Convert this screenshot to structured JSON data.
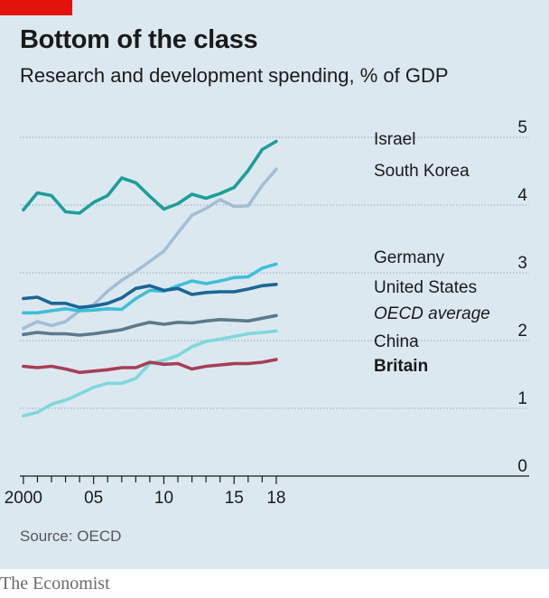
{
  "header": {
    "title": "Bottom of the class",
    "subtitle": "Research and development spending, % of GDP"
  },
  "footer": {
    "source": "Source: OECD",
    "brand": "The Economist"
  },
  "colors": {
    "background": "#dce8f0",
    "accent_tag": "#e3120b"
  },
  "chart_data": {
    "type": "line",
    "title": "Bottom of the class",
    "subtitle": "Research and development spending, % of GDP",
    "xlabel": "",
    "ylabel": "",
    "x": [
      2000,
      2001,
      2002,
      2003,
      2004,
      2005,
      2006,
      2007,
      2008,
      2009,
      2010,
      2011,
      2012,
      2013,
      2014,
      2015,
      2016,
      2017,
      2018
    ],
    "xlim": [
      1999.75,
      2036
    ],
    "ylim": [
      0,
      5
    ],
    "x_ticks": [
      2000,
      2005,
      2010,
      2015,
      2018
    ],
    "x_tick_labels": [
      "2000",
      "05",
      "10",
      "15",
      "18"
    ],
    "y_ticks": [
      0,
      1,
      2,
      3,
      4,
      5
    ],
    "y_tick_labels": [
      "0",
      "1",
      "2",
      "3",
      "4",
      "5"
    ],
    "y_axis_side": "right",
    "grid": true,
    "legend": "direct labels at line ends",
    "series": [
      {
        "name": "Israel",
        "color": "#1c9e9a",
        "style": "normal",
        "values": [
          3.93,
          4.18,
          4.14,
          3.9,
          3.88,
          4.04,
          4.14,
          4.4,
          4.33,
          4.13,
          3.94,
          4.02,
          4.16,
          4.1,
          4.17,
          4.26,
          4.51,
          4.82,
          4.94
        ]
      },
      {
        "name": "South Korea",
        "color": "#a3bfd4",
        "style": "normal",
        "values": [
          2.18,
          2.28,
          2.22,
          2.28,
          2.44,
          2.53,
          2.73,
          2.89,
          3.02,
          3.17,
          3.32,
          3.59,
          3.85,
          3.95,
          4.08,
          3.98,
          3.99,
          4.29,
          4.53
        ]
      },
      {
        "name": "Germany",
        "color": "#3ebfd6",
        "style": "normal",
        "values": [
          2.41,
          2.41,
          2.44,
          2.47,
          2.44,
          2.45,
          2.47,
          2.46,
          2.62,
          2.74,
          2.73,
          2.81,
          2.88,
          2.84,
          2.88,
          2.93,
          2.94,
          3.07,
          3.13
        ]
      },
      {
        "name": "United States",
        "color": "#1a6696",
        "style": "normal",
        "values": [
          2.62,
          2.64,
          2.55,
          2.55,
          2.49,
          2.51,
          2.55,
          2.63,
          2.77,
          2.81,
          2.74,
          2.77,
          2.68,
          2.71,
          2.72,
          2.72,
          2.76,
          2.81,
          2.83
        ]
      },
      {
        "name": "OECD average",
        "color": "#5c7a8c",
        "style": "italic",
        "values": [
          2.09,
          2.12,
          2.1,
          2.1,
          2.08,
          2.1,
          2.13,
          2.16,
          2.22,
          2.27,
          2.24,
          2.27,
          2.26,
          2.29,
          2.31,
          2.3,
          2.29,
          2.33,
          2.37
        ]
      },
      {
        "name": "China",
        "color": "#7ed8dc",
        "style": "normal",
        "values": [
          0.89,
          0.94,
          1.06,
          1.12,
          1.21,
          1.31,
          1.37,
          1.37,
          1.44,
          1.66,
          1.71,
          1.78,
          1.91,
          1.99,
          2.02,
          2.06,
          2.1,
          2.12,
          2.14
        ]
      },
      {
        "name": "Britain",
        "color": "#a63f56",
        "style": "bold",
        "values": [
          1.62,
          1.6,
          1.62,
          1.58,
          1.53,
          1.55,
          1.57,
          1.6,
          1.6,
          1.68,
          1.65,
          1.66,
          1.58,
          1.62,
          1.64,
          1.66,
          1.66,
          1.68,
          1.72
        ]
      }
    ]
  }
}
